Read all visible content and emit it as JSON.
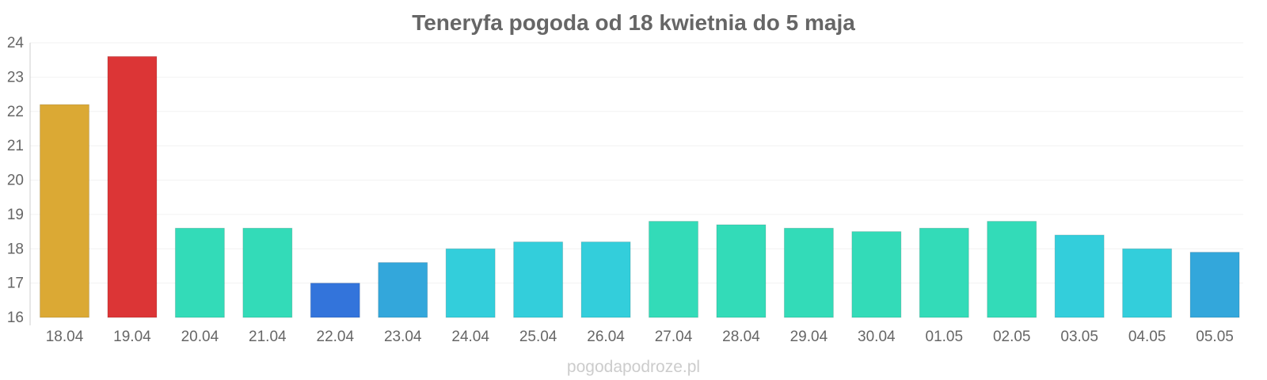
{
  "chart_data": {
    "type": "bar",
    "title": "Teneryfa pogoda od 18 kwietnia do 5 maja",
    "xlabel": "",
    "ylabel": "",
    "ylim": [
      16,
      24
    ],
    "yticks": [
      "16",
      "17",
      "18",
      "19",
      "20",
      "21",
      "22",
      "23",
      "24"
    ],
    "grid": true,
    "legend": "none",
    "categories": [
      "18.04",
      "19.04",
      "20.04",
      "21.04",
      "22.04",
      "23.04",
      "24.04",
      "25.04",
      "26.04",
      "27.04",
      "28.04",
      "29.04",
      "30.04",
      "01.05",
      "02.05",
      "03.05",
      "04.05",
      "05.05"
    ],
    "values": [
      22.2,
      23.6,
      18.6,
      18.6,
      17.0,
      17.6,
      18.0,
      18.2,
      18.2,
      18.8,
      18.7,
      18.6,
      18.5,
      18.6,
      18.8,
      18.4,
      18.0,
      17.9
    ],
    "colors": [
      "#dba934",
      "#dc3536",
      "#33dbb8",
      "#33dbb8",
      "#3374db",
      "#33a7db",
      "#33cedb",
      "#33cedb",
      "#33cedb",
      "#33dbb8",
      "#33dbb8",
      "#33dbb8",
      "#33dbb8",
      "#33dbb8",
      "#33dbb8",
      "#33cedb",
      "#33cedb",
      "#33a7db"
    ]
  },
  "footer": {
    "watermark": "pogodapodroze.pl"
  }
}
